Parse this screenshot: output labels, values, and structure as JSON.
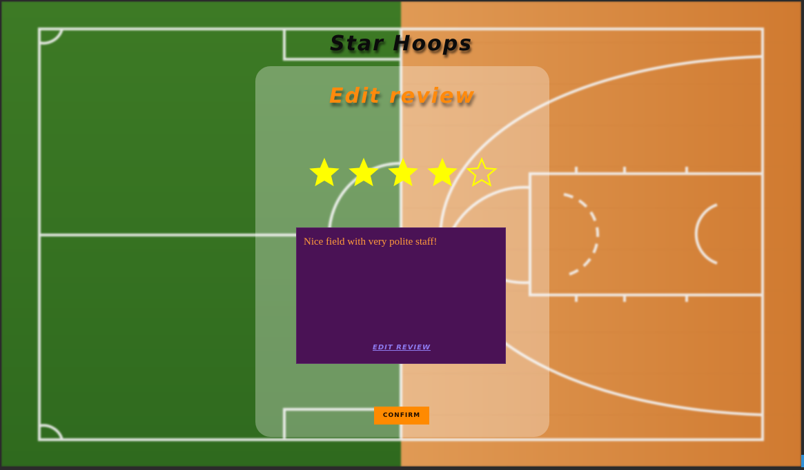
{
  "app": {
    "title": "Star Hoops"
  },
  "panel": {
    "heading": "Edit review"
  },
  "rating": {
    "value": 4,
    "max": 5,
    "filled_color": "#ffff00",
    "empty_color": "#ffff00"
  },
  "review": {
    "text": "Nice field with very polite staff!",
    "edit_label": "EDIT REVIEW"
  },
  "actions": {
    "confirm_label": "CONFIRM"
  },
  "colors": {
    "grass": "#3f7a2a",
    "wood": "#d98a3e",
    "accent_orange": "#ff8a00",
    "review_box": "#4a1255",
    "review_text": "#ff9a3c",
    "link": "#8e7bf0"
  }
}
